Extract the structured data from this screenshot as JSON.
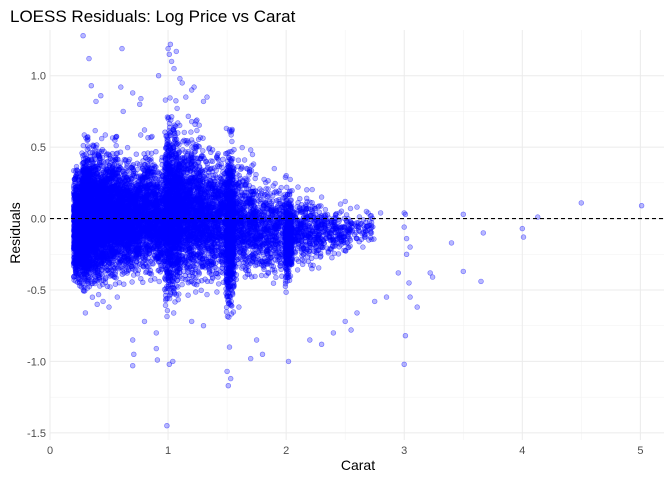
{
  "chart_data": {
    "type": "scatter",
    "title": "LOESS Residuals: Log Price vs Carat",
    "xlabel": "Carat",
    "ylabel": "Residuals",
    "xlim": [
      0,
      5.2
    ],
    "ylim": [
      -1.55,
      1.32
    ],
    "x_ticks": [
      0,
      1,
      2,
      3,
      4,
      5
    ],
    "y_ticks": [
      -1.5,
      -1.0,
      -0.5,
      0.0,
      0.5,
      1.0
    ],
    "x_tick_labels": [
      "0",
      "1",
      "2",
      "3",
      "4",
      "5"
    ],
    "y_tick_labels": [
      "-1.5",
      "-1.0",
      "-0.5",
      "0.0",
      "0.5",
      "1.0"
    ],
    "grid": true,
    "legend": "none",
    "point_color": "#0000ff",
    "reference_line": {
      "y": 0,
      "style": "dashed",
      "color": "#000000"
    },
    "series": [
      {
        "points": [
          [
            0.28,
            1.28
          ],
          [
            0.33,
            1.12
          ],
          [
            0.35,
            0.93
          ],
          [
            0.39,
            0.82
          ],
          [
            0.43,
            0.86
          ],
          [
            0.61,
            1.19
          ],
          [
            0.62,
            0.75
          ],
          [
            0.6,
            0.92
          ],
          [
            0.7,
            0.88
          ],
          [
            0.76,
            0.8
          ],
          [
            0.77,
            0.84
          ],
          [
            0.8,
            0.62
          ],
          [
            0.92,
            1.0
          ],
          [
            1.0,
            1.19
          ],
          [
            1.01,
            1.15
          ],
          [
            1.02,
            1.22
          ],
          [
            1.03,
            1.1
          ],
          [
            1.05,
            1.05
          ],
          [
            1.07,
            1.17
          ],
          [
            1.1,
            0.98
          ],
          [
            1.12,
            0.95
          ],
          [
            1.15,
            0.85
          ],
          [
            1.2,
            0.9
          ],
          [
            1.22,
            0.92
          ],
          [
            1.3,
            0.82
          ],
          [
            1.33,
            0.85
          ],
          [
            0.99,
            -1.45
          ],
          [
            1.51,
            -1.17
          ],
          [
            1.53,
            -1.12
          ],
          [
            1.5,
            -1.07
          ],
          [
            0.7,
            -0.85
          ],
          [
            0.71,
            -0.95
          ],
          [
            0.7,
            -1.03
          ],
          [
            0.9,
            -0.91
          ],
          [
            0.91,
            -0.99
          ],
          [
            1.04,
            -1.0
          ],
          [
            1.01,
            -1.02
          ],
          [
            2.02,
            -1.0
          ],
          [
            2.5,
            -0.72
          ],
          [
            2.55,
            -0.78
          ],
          [
            2.6,
            -0.66
          ],
          [
            2.75,
            -0.58
          ],
          [
            2.85,
            -0.55
          ],
          [
            2.95,
            -0.38
          ],
          [
            3.0,
            0.04
          ],
          [
            3.01,
            0.03
          ],
          [
            3.0,
            -0.06
          ],
          [
            3.02,
            -0.14
          ],
          [
            3.02,
            -0.25
          ],
          [
            3.04,
            -0.45
          ],
          [
            3.05,
            -0.55
          ],
          [
            3.01,
            -0.82
          ],
          [
            3.0,
            -1.02
          ],
          [
            3.05,
            -0.2
          ],
          [
            3.11,
            -0.62
          ],
          [
            3.22,
            -0.38
          ],
          [
            3.24,
            -0.41
          ],
          [
            3.4,
            -0.17
          ],
          [
            3.5,
            0.03
          ],
          [
            3.5,
            -0.37
          ],
          [
            3.65,
            -0.44
          ],
          [
            3.67,
            -0.1
          ],
          [
            4.0,
            -0.07
          ],
          [
            4.01,
            -0.13
          ],
          [
            4.13,
            0.01
          ],
          [
            4.5,
            0.11
          ],
          [
            5.01,
            0.09
          ],
          [
            2.7,
            -0.15
          ],
          [
            2.8,
            0.04
          ],
          [
            2.65,
            -0.2
          ],
          [
            2.72,
            0.02
          ],
          [
            2.4,
            -0.8
          ],
          [
            2.3,
            -0.88
          ],
          [
            2.2,
            -0.85
          ],
          [
            1.8,
            -0.95
          ],
          [
            1.7,
            -0.98
          ],
          [
            0.9,
            -0.8
          ],
          [
            0.4,
            -0.6
          ],
          [
            0.3,
            -0.66
          ],
          [
            0.25,
            -0.45
          ],
          [
            0.24,
            -0.3
          ],
          [
            0.23,
            0.05
          ],
          [
            0.22,
            0.2
          ],
          [
            0.23,
            -0.1
          ],
          [
            0.45,
            -0.58
          ],
          [
            0.5,
            -0.62
          ],
          [
            0.57,
            -0.55
          ],
          [
            0.8,
            -0.72
          ],
          [
            1.2,
            -0.72
          ],
          [
            1.3,
            -0.75
          ],
          [
            1.6,
            -0.62
          ],
          [
            1.75,
            -0.85
          ],
          [
            1.52,
            -0.9
          ],
          [
            1.52,
            0.62
          ],
          [
            1.7,
            0.48
          ],
          [
            1.9,
            0.35
          ],
          [
            2.0,
            0.3
          ],
          [
            2.1,
            0.22
          ],
          [
            2.3,
            0.15
          ],
          [
            2.5,
            0.12
          ],
          [
            2.6,
            0.08
          ],
          [
            2.68,
            0.05
          ]
        ]
      }
    ],
    "density_bands": [
      {
        "x0": 0.2,
        "x1": 0.27,
        "y0": -0.55,
        "y1": 0.42,
        "n": 900
      },
      {
        "x0": 0.27,
        "x1": 0.34,
        "y0": -0.58,
        "y1": 0.6,
        "n": 1300
      },
      {
        "x0": 0.34,
        "x1": 0.46,
        "y0": -0.6,
        "y1": 0.62,
        "n": 1200
      },
      {
        "x0": 0.46,
        "x1": 0.6,
        "y0": -0.55,
        "y1": 0.6,
        "n": 1100
      },
      {
        "x0": 0.6,
        "x1": 0.76,
        "y0": -0.5,
        "y1": 0.5,
        "n": 1000
      },
      {
        "x0": 0.76,
        "x1": 0.9,
        "y0": -0.52,
        "y1": 0.6,
        "n": 700
      },
      {
        "x0": 0.9,
        "x1": 0.97,
        "y0": -0.5,
        "y1": 0.45,
        "n": 350
      },
      {
        "x0": 0.97,
        "x1": 1.1,
        "y0": -0.75,
        "y1": 0.85,
        "n": 1300
      },
      {
        "x0": 1.1,
        "x1": 1.3,
        "y0": -0.62,
        "y1": 0.72,
        "n": 1100
      },
      {
        "x0": 1.3,
        "x1": 1.49,
        "y0": -0.58,
        "y1": 0.6,
        "n": 700
      },
      {
        "x0": 1.49,
        "x1": 1.56,
        "y0": -0.78,
        "y1": 0.65,
        "n": 900
      },
      {
        "x0": 1.56,
        "x1": 1.75,
        "y0": -0.55,
        "y1": 0.5,
        "n": 550
      },
      {
        "x0": 1.75,
        "x1": 1.99,
        "y0": -0.5,
        "y1": 0.35,
        "n": 450
      },
      {
        "x0": 1.99,
        "x1": 2.05,
        "y0": -0.55,
        "y1": 0.3,
        "n": 450
      },
      {
        "x0": 2.05,
        "x1": 2.3,
        "y0": -0.4,
        "y1": 0.22,
        "n": 350
      },
      {
        "x0": 2.3,
        "x1": 2.55,
        "y0": -0.3,
        "y1": 0.12,
        "n": 200
      },
      {
        "x0": 2.55,
        "x1": 2.75,
        "y0": -0.2,
        "y1": 0.06,
        "n": 60
      }
    ]
  }
}
